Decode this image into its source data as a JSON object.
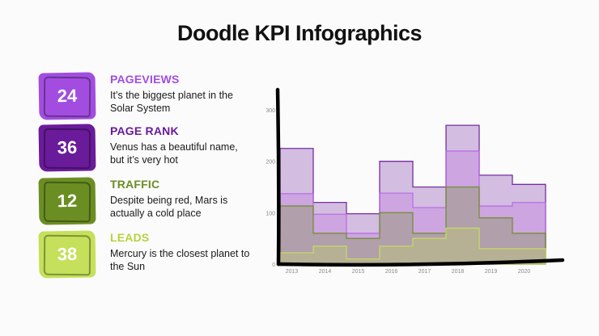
{
  "title": "Doodle KPI Infographics",
  "kpis": [
    {
      "value": "24",
      "label": "PAGEVIEWS",
      "desc": "It’s the biggest planet in the Solar System",
      "color": "#a24de0",
      "label_color": "#a24de0"
    },
    {
      "value": "36",
      "label": "PAGE RANK",
      "desc": "Venus has a beautiful name, but it’s very hot",
      "color": "#6a1b9a",
      "label_color": "#6a1b9a"
    },
    {
      "value": "12",
      "label": "TRAFFIC",
      "desc": "Despite being red, Mars is actually a cold place",
      "color": "#6b8e23",
      "label_color": "#6b8e23"
    },
    {
      "value": "38",
      "label": "LEADS",
      "desc": "Mercury is the closest planet to the Sun",
      "color": "#c5e05a",
      "label_color": "#b6d33d"
    }
  ],
  "chart_data": {
    "type": "area",
    "step": true,
    "stacked": false,
    "categories": [
      "2013",
      "2014",
      "2015",
      "2016",
      "2017",
      "2018",
      "2019",
      "2020"
    ],
    "ylim": [
      0,
      300
    ],
    "yticks": [
      "0",
      "100",
      "200",
      "300"
    ],
    "series": [
      {
        "values": [
          225,
          120,
          98,
          200,
          150,
          270,
          173,
          155
        ],
        "color": "#6a1b9a"
      },
      {
        "values": [
          137,
          97,
          60,
          138,
          110,
          220,
          113,
          120
        ],
        "color": "#b968e6"
      },
      {
        "values": [
          113,
          60,
          50,
          100,
          60,
          150,
          90,
          60
        ],
        "color": "#6b8e23"
      },
      {
        "values": [
          22,
          35,
          10,
          35,
          50,
          70,
          30,
          30
        ],
        "color": "#c5e05a"
      }
    ]
  }
}
